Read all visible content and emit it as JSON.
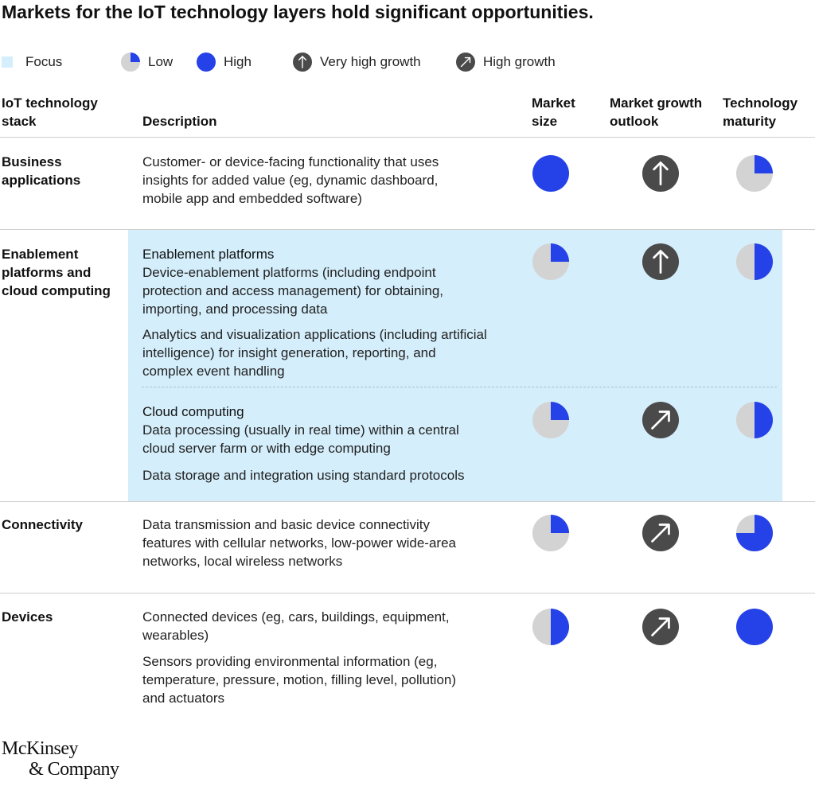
{
  "title": "Markets for the IoT technology layers hold significant opportunities.",
  "legend": {
    "focus": "Focus",
    "low": "Low",
    "high": "High",
    "very_high_growth": "Very high growth",
    "high_growth": "High growth"
  },
  "headers": {
    "stack_line1": "IoT technology",
    "stack_line2": "stack",
    "description": "Description",
    "market_size_line1": "Market",
    "market_size_line2": "size",
    "growth_line1": "Market growth",
    "growth_line2": "outlook",
    "maturity_line1": "Technology",
    "maturity_line2": "maturity"
  },
  "colors": {
    "blue": "#2541e8",
    "gray": "#d3d3d3",
    "dark": "#4a4a4a",
    "focus": "#d4eefb"
  },
  "rows": {
    "business": {
      "stack_lines": [
        "Business",
        "applications"
      ],
      "desc1_lines": [
        "Customer- or device-facing functionality that uses",
        "insights for added value (eg, dynamic dashboard,",
        "mobile app and embedded software)"
      ]
    },
    "enablement": {
      "stack_lines": [
        "Enablement",
        "platforms and",
        "cloud computing"
      ],
      "sub1_title": "Enablement platforms",
      "sub1_desc1_lines": [
        "Device-enablement platforms (including endpoint",
        "protection and access management) for obtaining,",
        "importing, and processing data"
      ],
      "sub1_desc2_lines": [
        "Analytics and visualization applications (including artificial",
        "intelligence) for insight generation, reporting, and",
        "complex event handling"
      ],
      "sub2_title": "Cloud computing",
      "sub2_desc1_lines": [
        "Data processing (usually in real time) within a central",
        "cloud server farm or with edge computing"
      ],
      "sub2_desc2_lines": [
        "Data storage and integration using standard protocols"
      ]
    },
    "connectivity": {
      "stack_lines": [
        "Connectivity"
      ],
      "desc1_lines": [
        "Data transmission and basic device connectivity",
        "features with cellular networks, low-power wide-area",
        "networks, local wireless networks"
      ]
    },
    "devices": {
      "stack_lines": [
        "Devices"
      ],
      "desc1_lines": [
        "Connected devices (eg, cars, buildings, equipment,",
        "wearables)"
      ],
      "desc2_lines": [
        "Sensors providing environmental information (eg,",
        "temperature, pressure, motion, filling level, pollution)",
        "and actuators"
      ]
    }
  },
  "chart_data": {
    "type": "table",
    "columns": [
      "IoT technology stack",
      "Description",
      "Market size",
      "Market growth outlook",
      "Technology maturity"
    ],
    "scale": "Harvey ball fill: 0.25 = Low, 1.0 = High",
    "growth_levels": [
      "Very high growth",
      "High growth"
    ],
    "rows": [
      {
        "layer": "Business applications",
        "focus": false,
        "market_size": 1.0,
        "market_growth": "Very high growth",
        "technology_maturity": 0.25
      },
      {
        "layer": "Enablement platforms",
        "focus": true,
        "market_size": 0.25,
        "market_growth": "Very high growth",
        "technology_maturity": 0.5
      },
      {
        "layer": "Cloud computing",
        "focus": true,
        "market_size": 0.25,
        "market_growth": "High growth",
        "technology_maturity": 0.5
      },
      {
        "layer": "Connectivity",
        "focus": false,
        "market_size": 0.25,
        "market_growth": "High growth",
        "technology_maturity": 0.75
      },
      {
        "layer": "Devices",
        "focus": false,
        "market_size": 0.5,
        "market_growth": "High growth",
        "technology_maturity": 1.0
      }
    ]
  },
  "logo": {
    "line1": "McKinsey",
    "line2": "& Company"
  }
}
